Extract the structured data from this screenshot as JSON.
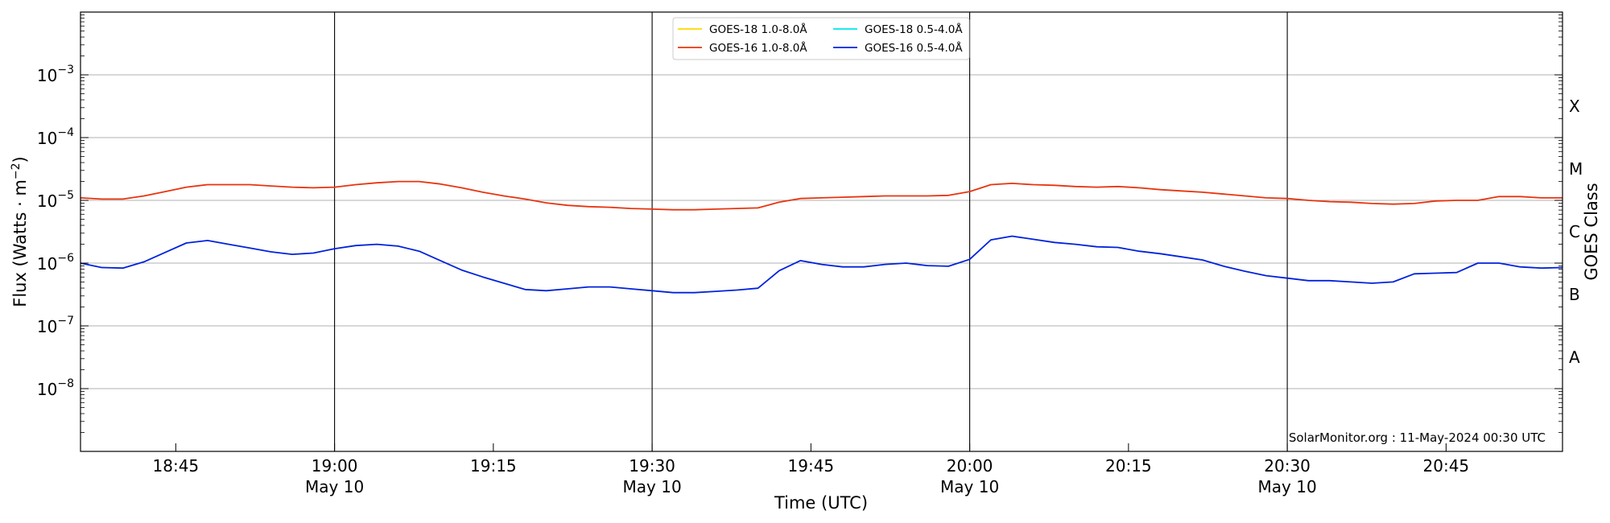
{
  "chart_data": {
    "type": "line",
    "title": "",
    "xlabel": "Time (UTC)",
    "ylabel_base": "Flux (Watts · m",
    "ylabel_exp": "−2",
    "ylabel_close": ")",
    "right_label": "GOES Class",
    "y_scale": "log",
    "xlim": [
      36.0,
      176.0
    ],
    "ylim_exp": [
      -9,
      -2
    ],
    "grid": "horizontal at each decade",
    "legend_position": "top-center",
    "credit": "SolarMonitor.org : 11-May-2024 00:30 UTC",
    "x_ticks": [
      {
        "value": 45,
        "time": "18:45",
        "date": ""
      },
      {
        "value": 60,
        "time": "19:00",
        "date": "May 10"
      },
      {
        "value": 75,
        "time": "19:15",
        "date": ""
      },
      {
        "value": 90,
        "time": "19:30",
        "date": "May 10"
      },
      {
        "value": 105,
        "time": "19:45",
        "date": ""
      },
      {
        "value": 120,
        "time": "20:00",
        "date": "May 10"
      },
      {
        "value": 135,
        "time": "20:15",
        "date": ""
      },
      {
        "value": 150,
        "time": "20:30",
        "date": "May 10"
      },
      {
        "value": 165,
        "time": "20:45",
        "date": ""
      }
    ],
    "vertical_lines": [
      60,
      90,
      120,
      150
    ],
    "y_ticks": [
      {
        "exp": -3,
        "base": "10",
        "sup": "−3"
      },
      {
        "exp": -4,
        "base": "10",
        "sup": "−4"
      },
      {
        "exp": -5,
        "base": "10",
        "sup": "−5"
      },
      {
        "exp": -6,
        "base": "10",
        "sup": "−6"
      },
      {
        "exp": -7,
        "base": "10",
        "sup": "−7"
      },
      {
        "exp": -8,
        "base": "10",
        "sup": "−8"
      }
    ],
    "goes_classes": [
      {
        "label": "X",
        "exp": -3.5
      },
      {
        "label": "M",
        "exp": -4.5
      },
      {
        "label": "C",
        "exp": -5.5
      },
      {
        "label": "B",
        "exp": -6.5
      },
      {
        "label": "A",
        "exp": -7.5
      }
    ],
    "series": [
      {
        "name": "GOES-18 1.0-8.0Å",
        "color": "#FFD700",
        "x": [],
        "y_exp": []
      },
      {
        "name": "GOES-18 0.5-4.0Å",
        "color": "#00E5EE",
        "x": [],
        "y_exp": []
      },
      {
        "name": "GOES-16 1.0-8.0Å",
        "color": "#E8340E",
        "x": [
          36,
          38,
          40,
          42,
          44,
          46,
          48,
          50,
          52,
          54,
          56,
          58,
          60,
          62,
          64,
          66,
          68,
          70,
          72,
          74,
          76,
          78,
          80,
          82,
          84,
          86,
          88,
          90,
          92,
          94,
          96,
          98,
          100,
          102,
          104,
          106,
          108,
          110,
          112,
          114,
          116,
          118,
          120,
          122,
          124,
          126,
          128,
          130,
          132,
          134,
          136,
          138,
          140,
          142,
          144,
          146,
          148,
          150,
          152,
          154,
          156,
          158,
          160,
          162,
          164,
          166,
          168,
          170,
          172,
          174,
          176
        ],
        "y_exp": [
          -4.96,
          -4.98,
          -4.98,
          -4.93,
          -4.86,
          -4.79,
          -4.75,
          -4.75,
          -4.75,
          -4.77,
          -4.79,
          -4.8,
          -4.79,
          -4.75,
          -4.72,
          -4.7,
          -4.7,
          -4.74,
          -4.8,
          -4.87,
          -4.93,
          -4.98,
          -5.04,
          -5.08,
          -5.1,
          -5.11,
          -5.13,
          -5.14,
          -5.15,
          -5.15,
          -5.14,
          -5.13,
          -5.12,
          -5.03,
          -4.97,
          -4.96,
          -4.95,
          -4.94,
          -4.93,
          -4.93,
          -4.93,
          -4.92,
          -4.86,
          -4.75,
          -4.73,
          -4.75,
          -4.76,
          -4.78,
          -4.79,
          -4.78,
          -4.8,
          -4.83,
          -4.85,
          -4.87,
          -4.9,
          -4.93,
          -4.96,
          -4.97,
          -5.0,
          -5.02,
          -5.03,
          -5.05,
          -5.06,
          -5.05,
          -5.01,
          -5.0,
          -5.0,
          -4.94,
          -4.94,
          -4.96,
          -4.96
        ]
      },
      {
        "name": "GOES-16 0.5-4.0Å",
        "color": "#0022DD",
        "x": [
          36,
          38,
          40,
          42,
          44,
          46,
          48,
          50,
          52,
          54,
          56,
          58,
          60,
          62,
          64,
          66,
          68,
          70,
          72,
          74,
          76,
          78,
          80,
          82,
          84,
          86,
          88,
          90,
          92,
          94,
          96,
          98,
          100,
          102,
          104,
          106,
          108,
          110,
          112,
          114,
          116,
          118,
          120,
          122,
          124,
          126,
          128,
          130,
          132,
          134,
          136,
          138,
          140,
          142,
          144,
          146,
          148,
          150,
          152,
          154,
          156,
          158,
          160,
          162,
          164,
          166,
          168,
          170,
          172,
          174,
          176
        ],
        "y_exp": [
          -6.0,
          -6.07,
          -6.08,
          -5.98,
          -5.83,
          -5.68,
          -5.64,
          -5.7,
          -5.76,
          -5.82,
          -5.86,
          -5.84,
          -5.77,
          -5.72,
          -5.7,
          -5.73,
          -5.81,
          -5.96,
          -6.11,
          -6.22,
          -6.32,
          -6.42,
          -6.44,
          -6.41,
          -6.38,
          -6.38,
          -6.41,
          -6.44,
          -6.47,
          -6.47,
          -6.45,
          -6.43,
          -6.4,
          -6.12,
          -5.96,
          -6.02,
          -6.06,
          -6.06,
          -6.02,
          -6.0,
          -6.04,
          -6.05,
          -5.94,
          -5.63,
          -5.57,
          -5.62,
          -5.67,
          -5.7,
          -5.74,
          -5.75,
          -5.81,
          -5.85,
          -5.9,
          -5.95,
          -6.05,
          -6.13,
          -6.2,
          -6.24,
          -6.28,
          -6.28,
          -6.3,
          -6.32,
          -6.3,
          -6.17,
          -6.16,
          -6.15,
          -6.0,
          -6.0,
          -6.06,
          -6.08,
          -6.07
        ]
      }
    ]
  }
}
